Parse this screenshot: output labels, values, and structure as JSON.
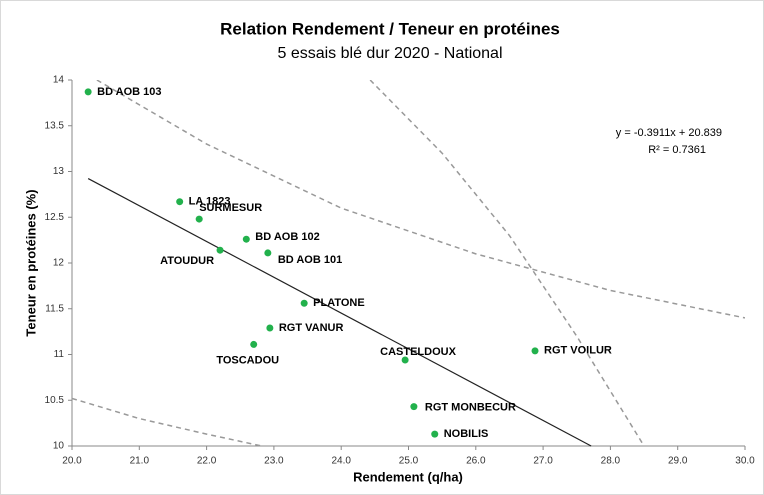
{
  "chart_data": {
    "type": "scatter",
    "title": "Relation Rendement / Teneur en protéines",
    "subtitle": "5 essais blé dur 2020 - National",
    "x_label": "Rendement (q/ha)",
    "y_label": "Teneur en protéines (%)",
    "color": "#22b14c",
    "labels": [
      "BD AOB 103",
      "LA 1823",
      "SURMESUR",
      "BD AOB 102",
      "ATOUDUR",
      "BD AOB 101",
      "PLATONE",
      "RGT VANUR",
      "TOSCADOU",
      "CASTELDOUX",
      "RGT VOILUR",
      "RGT MONBECUR",
      "NOBILIS"
    ],
    "x": [
      20.24,
      21.6,
      21.89,
      22.59,
      22.2,
      22.91,
      23.45,
      22.94,
      22.7,
      24.95,
      26.88,
      25.08,
      25.39
    ],
    "values": [
      13.87,
      12.67,
      12.48,
      12.26,
      12.14,
      12.11,
      11.56,
      11.29,
      11.11,
      10.94,
      11.04,
      10.43,
      10.13
    ],
    "trendline": {
      "slope": -0.3911,
      "intercept": 20.839,
      "equation": "y = -0.3911x + 20.839",
      "r2": 0.7361,
      "r2_label": "R² = 0.7361"
    },
    "curves": [
      {
        "x": [
          20.37,
          22,
          24,
          26,
          28,
          30
        ],
        "y": [
          14,
          13.3,
          12.6,
          12.1,
          11.7,
          11.4
        ]
      },
      {
        "x": [
          24.43,
          25.5,
          26.5,
          27.5,
          28.5
        ],
        "y": [
          14,
          13.2,
          12.3,
          11.2,
          10
        ]
      },
      {
        "x": [
          20,
          21,
          22,
          22.82
        ],
        "y": [
          10.52,
          10.3,
          10.13,
          10
        ]
      }
    ],
    "xlim": [
      20,
      30
    ],
    "xticks": [
      {
        "value": 20,
        "label": "20.0"
      },
      {
        "value": 21,
        "label": "21.0"
      },
      {
        "value": 22,
        "label": "22.0"
      },
      {
        "value": 23,
        "label": "23.0"
      },
      {
        "value": 24,
        "label": "24.0"
      },
      {
        "value": 25,
        "label": "25.0"
      },
      {
        "value": 26,
        "label": "26.0"
      },
      {
        "value": 27,
        "label": "27.0"
      },
      {
        "value": 28,
        "label": "28.0"
      },
      {
        "value": 29,
        "label": "29.0"
      },
      {
        "value": 30,
        "label": "30.0"
      }
    ],
    "ylim": [
      10,
      14
    ],
    "yticks": [
      10,
      10.5,
      11,
      11.5,
      12,
      12.5,
      13,
      13.5,
      14
    ]
  }
}
